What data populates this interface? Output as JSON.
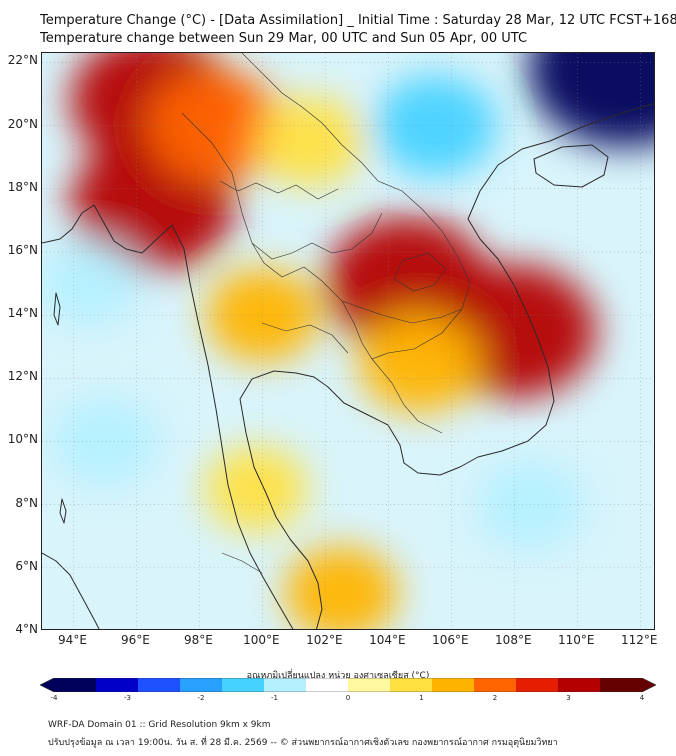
{
  "header": {
    "title_line1": "Temperature Change (°C) - [Data Assimilation] _ Initial Time : Saturday 28 Mar, 12 UTC FCST+168",
    "title_line2": "Temperature change between Sun 29 Mar, 00 UTC and Sun 05 Apr, 00 UTC"
  },
  "map": {
    "lat_labels": [
      "22°N",
      "20°N",
      "18°N",
      "16°N",
      "14°N",
      "12°N",
      "10°N",
      "8°N",
      "6°N",
      "4°N"
    ],
    "lon_labels": [
      "94°E",
      "96°E",
      "98°E",
      "100°E",
      "102°E",
      "104°E",
      "106°E",
      "108°E",
      "110°E",
      "112°E"
    ],
    "extent": {
      "lon_min": 93.0,
      "lon_max": 112.5,
      "lat_min": 4.0,
      "lat_max": 22.3
    },
    "anomalies": [
      {
        "region": "warm-myanmar-north",
        "lon": 96.5,
        "lat": 20.8,
        "value": 3.0
      },
      {
        "region": "warm-myanmar-west",
        "lon": 96.5,
        "lat": 17.5,
        "value": 3.0
      },
      {
        "region": "warm-shan",
        "lon": 98.5,
        "lat": 20.0,
        "value": 2.0
      },
      {
        "region": "warm-laos",
        "lon": 101.5,
        "lat": 19.5,
        "value": 1.0
      },
      {
        "region": "warm-isan",
        "lon": 104.6,
        "lat": 15.0,
        "value": 3.0
      },
      {
        "region": "warm-vietnam-highlands",
        "lon": 108.0,
        "lat": 13.5,
        "value": 3.0
      },
      {
        "region": "warm-cambodia",
        "lon": 105.0,
        "lat": 12.5,
        "value": 1.5
      },
      {
        "region": "warm-thai-central",
        "lon": 100.0,
        "lat": 14.0,
        "value": 1.2
      },
      {
        "region": "warm-peninsula",
        "lon": 99.8,
        "lat": 8.5,
        "value": 0.8
      },
      {
        "region": "warm-sea-south",
        "lon": 102.5,
        "lat": 5.2,
        "value": 1.2
      },
      {
        "region": "cool-gulf-tonkin",
        "lon": 105.5,
        "lat": 20.0,
        "value": -1.5
      },
      {
        "region": "cool-bay-bengal",
        "lon": 94.5,
        "lat": 15.0,
        "value": -0.8
      },
      {
        "region": "cool-andaman",
        "lon": 95.0,
        "lat": 10.0,
        "value": -1.0
      },
      {
        "region": "cool-south-sea",
        "lon": 108.5,
        "lat": 8.0,
        "value": -1.0
      },
      {
        "region": "cool-northeast",
        "lon": 111.5,
        "lat": 21.8,
        "value": -4.0
      }
    ]
  },
  "colorbar": {
    "title": "อุณหภูมิเปลี่ยนแปลง หน่วย องศาเซลเซียส (°C)",
    "ticks": [
      "-4",
      "-3",
      "-2",
      "-1",
      "0",
      "1",
      "2",
      "3",
      "4"
    ],
    "range": [
      -4,
      4
    ],
    "colors": [
      "#00005a",
      "#0000c8",
      "#1e50ff",
      "#28a0ff",
      "#46d2ff",
      "#b4f0ff",
      "#ffffff",
      "#fff8a0",
      "#ffe040",
      "#ffb400",
      "#ff6400",
      "#e61e00",
      "#b40000",
      "#640000"
    ]
  },
  "footer": {
    "line1": "WRF-DA Domain 01 :: Grid Resolution 9km x 9km",
    "line2": "ปรับปรุงข้อมูล ณ เวลา 19:00น. วัน ส. ที่ 28 มี.ค. 2569 -- © ส่วนพยากรณ์อากาศเชิงตัวเลข กองพยากรณ์อากาศ กรมอุตุนิยมวิทยา"
  }
}
